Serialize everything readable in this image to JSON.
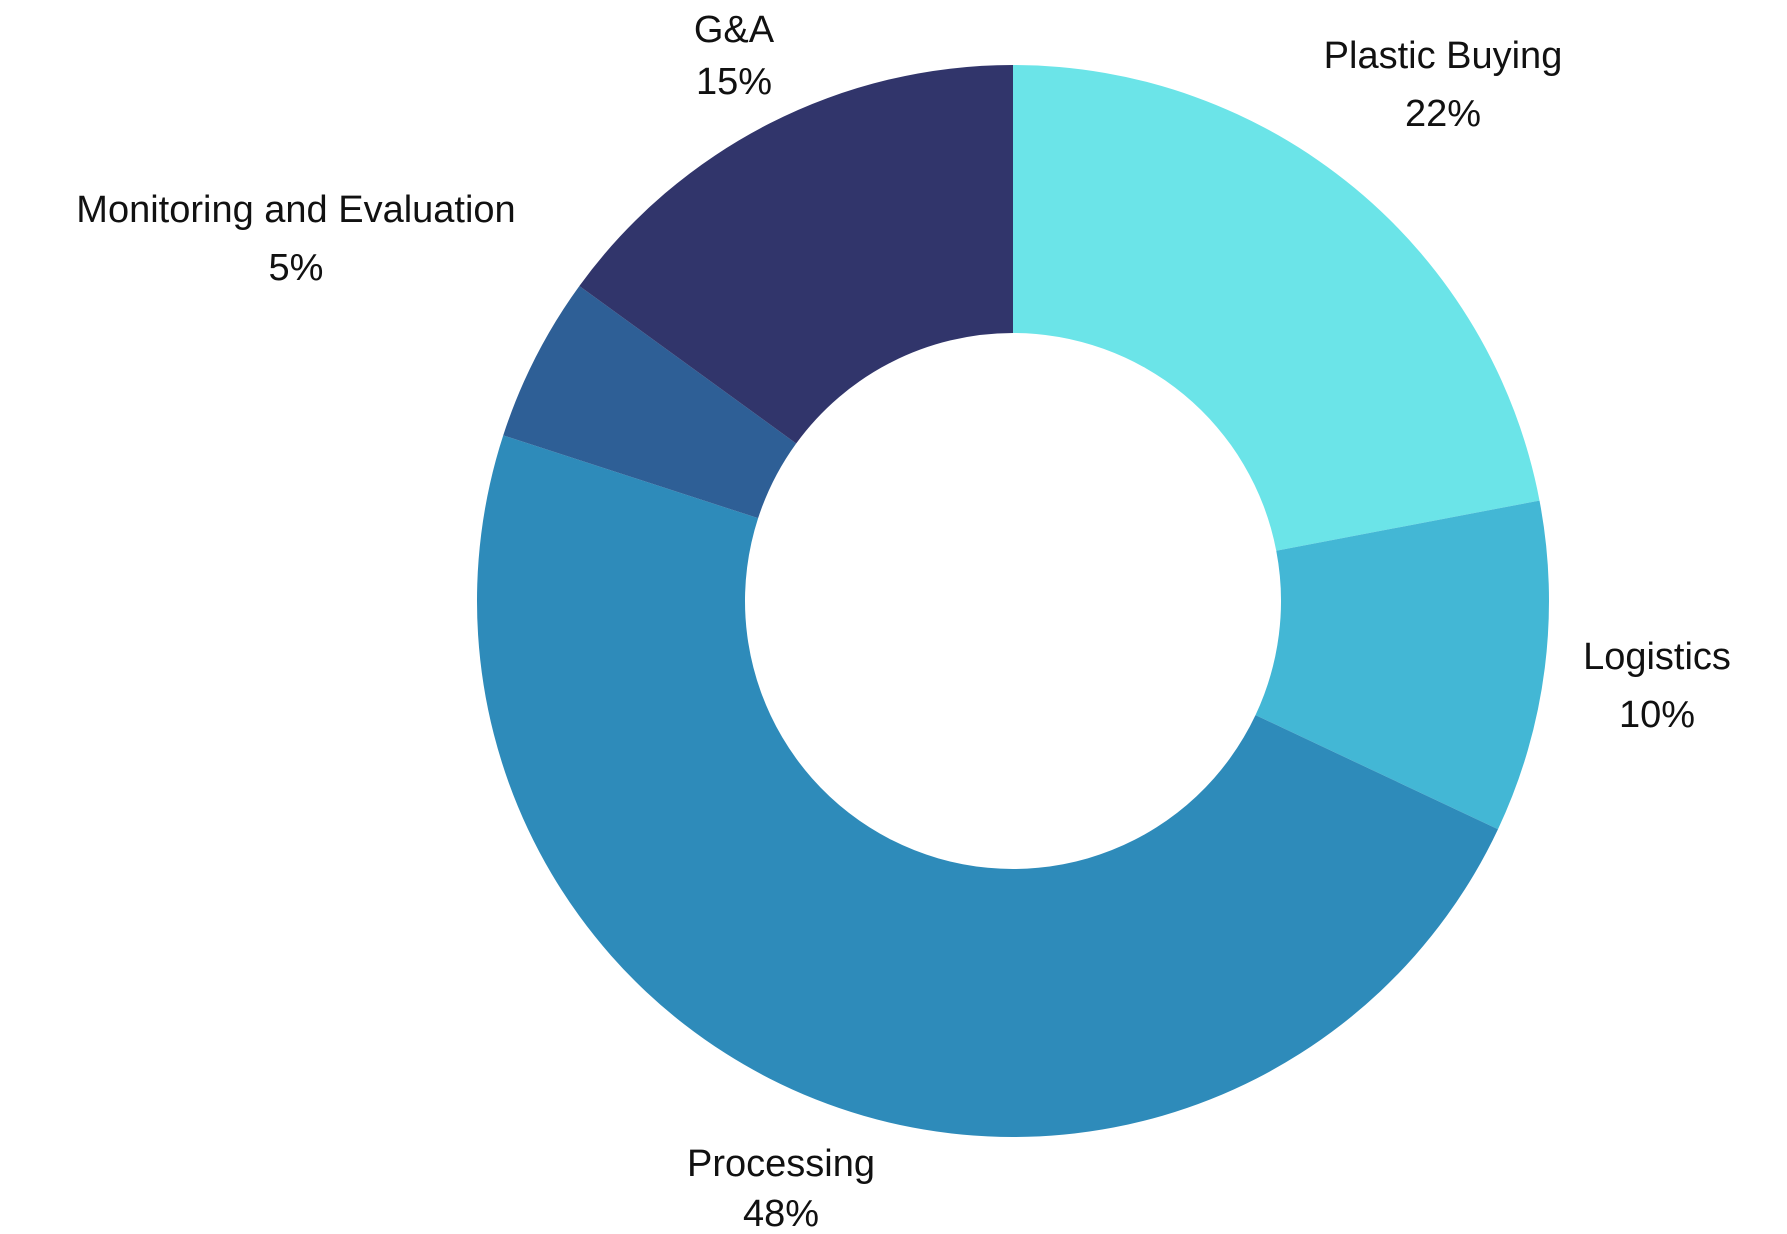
{
  "chart_data": {
    "type": "pie",
    "variant": "donut",
    "title": "",
    "slices": [
      {
        "name": "Plastic Buying",
        "value": 22,
        "label": "22%",
        "color": "#6be4e8"
      },
      {
        "name": "Logistics",
        "value": 10,
        "label": "10%",
        "color": "#43b7d5"
      },
      {
        "name": "Processing",
        "value": 48,
        "label": "48%",
        "color": "#2e8bba"
      },
      {
        "name": "Monitoring and Evaluation",
        "value": 5,
        "label": "5%",
        "color": "#2e5f96"
      },
      {
        "name": "G&A",
        "value": 15,
        "label": "15%",
        "color": "#31356b"
      }
    ],
    "start_angle": "12 o'clock",
    "direction": "clockwise",
    "legend": "none",
    "labels": "outside"
  }
}
